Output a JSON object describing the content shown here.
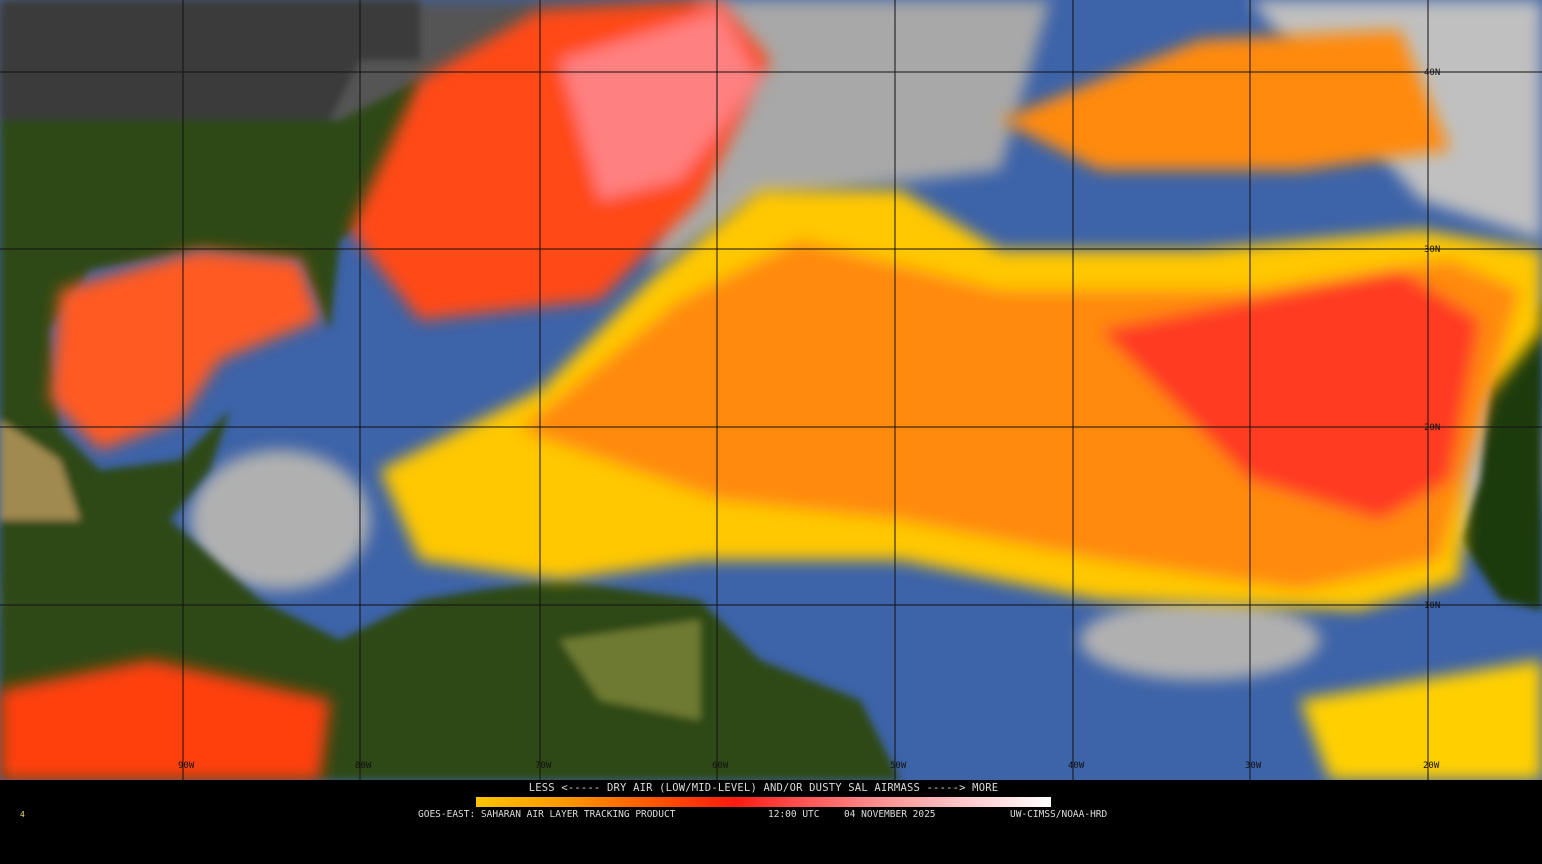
{
  "map": {
    "product": "GOES-EAST: SAHARAN AIR LAYER TRACKING PRODUCT",
    "time": "12:00 UTC",
    "date": "04 NOVEMBER 2025",
    "source": "UW-CIMSS/NOAA-HRD",
    "corner_mark": "4",
    "legend": {
      "title": "LESS <----- DRY AIR (LOW/MID-LEVEL) AND/OR DUSTY SAL AIRMASS -----> MORE",
      "colors": [
        "#ffc400",
        "#ff5a00",
        "#ff1a10",
        "#ff8f90",
        "#ffffff"
      ]
    },
    "longitude_labels": [
      "90W",
      "80W",
      "70W",
      "60W",
      "50W",
      "40W",
      "30W",
      "20W"
    ],
    "latitude_labels": [
      "40N",
      "30N",
      "20N",
      "10N"
    ],
    "colors": {
      "ocean": "#3d63a8",
      "land": "#2d4a14",
      "cloud": "#b8b8b8",
      "sal_low": "#ffd000",
      "sal_high": "#ff2010"
    }
  }
}
